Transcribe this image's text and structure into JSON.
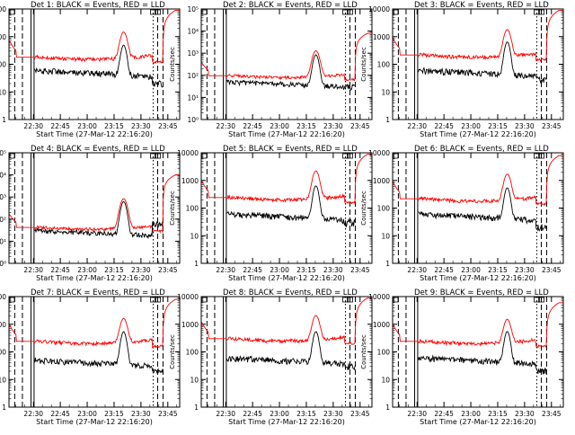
{
  "figure": {
    "xlabel": "Start Time (27-Mar-12 22:16:20)",
    "ylabel": "Counts/sec",
    "time_ticks": [
      "22:30",
      "22:45",
      "23:00",
      "23:15",
      "23:30",
      "23:45"
    ],
    "log_tick_labels_small": [
      "1",
      "10",
      "100",
      "1000",
      "10000"
    ],
    "log_tick_labels_exp": [
      "10⁰",
      "10¹",
      "10²",
      "10³",
      "10⁴",
      "10⁵"
    ],
    "colors": {
      "events": "#000000",
      "lld": "#ff0000",
      "axes": "#000000"
    }
  },
  "chart_data": [
    {
      "type": "line",
      "title": "Det 1: BLACK = Events, RED = LLD",
      "label": "Det 1",
      "yscale": "log",
      "ylim": [
        1,
        10000
      ],
      "tick_style": "numeric",
      "series": [
        {
          "name": "Events",
          "baseline": 60,
          "peak": 450,
          "tail": 20
        },
        {
          "name": "LLD",
          "baseline": 150,
          "peak": 1300,
          "rise": 9000
        }
      ]
    },
    {
      "type": "line",
      "title": "Det 2: BLACK = Events, RED = LLD",
      "label": "Det 2",
      "yscale": "log",
      "ylim": [
        1,
        100000
      ],
      "tick_style": "exp",
      "series": [
        {
          "name": "Events",
          "baseline": 50,
          "peak": 800,
          "tail": 30
        },
        {
          "name": "LLD",
          "baseline": 80,
          "peak": 1200,
          "rise": 8000
        }
      ]
    },
    {
      "type": "line",
      "title": "Det 3: BLACK = Events, RED = LLD",
      "label": "Det 3",
      "yscale": "log",
      "ylim": [
        1,
        10000
      ],
      "tick_style": "numeric",
      "series": [
        {
          "name": "Events",
          "baseline": 60,
          "peak": 600,
          "tail": 30
        },
        {
          "name": "LLD",
          "baseline": 180,
          "peak": 1600,
          "rise": 9000
        }
      ]
    },
    {
      "type": "line",
      "title": "Det 4: BLACK = Events, RED = LLD",
      "label": "Det 4",
      "yscale": "log",
      "ylim": [
        1,
        100000
      ],
      "tick_style": "exp",
      "series": [
        {
          "name": "Events",
          "baseline": 30,
          "peak": 600,
          "tail": 60
        },
        {
          "name": "LLD",
          "baseline": 35,
          "peak": 800,
          "rise": 10000
        }
      ]
    },
    {
      "type": "line",
      "title": "Det 5: BLACK = Events, RED = LLD",
      "label": "Det 5",
      "yscale": "log",
      "ylim": [
        1,
        10000
      ],
      "tick_style": "numeric",
      "series": [
        {
          "name": "Events",
          "baseline": 60,
          "peak": 600,
          "tail": 30
        },
        {
          "name": "LLD",
          "baseline": 200,
          "peak": 2000,
          "rise": 9000
        }
      ]
    },
    {
      "type": "line",
      "title": "Det 6: BLACK = Events, RED = LLD",
      "label": "Det 6",
      "yscale": "log",
      "ylim": [
        1,
        10000
      ],
      "tick_style": "numeric",
      "series": [
        {
          "name": "Events",
          "baseline": 60,
          "peak": 500,
          "tail": 20
        },
        {
          "name": "LLD",
          "baseline": 180,
          "peak": 1500,
          "rise": 8000
        }
      ]
    },
    {
      "type": "line",
      "title": "Det 7: BLACK = Events, RED = LLD",
      "label": "Det 7",
      "yscale": "log",
      "ylim": [
        1,
        10000
      ],
      "tick_style": "numeric",
      "series": [
        {
          "name": "Events",
          "baseline": 50,
          "peak": 500,
          "tail": 20
        },
        {
          "name": "LLD",
          "baseline": 200,
          "peak": 1400,
          "rise": 8000
        }
      ]
    },
    {
      "type": "line",
      "title": "Det 8: BLACK = Events, RED = LLD",
      "label": "Det 8",
      "yscale": "log",
      "ylim": [
        1,
        10000
      ],
      "tick_style": "numeric",
      "series": [
        {
          "name": "Events",
          "baseline": 60,
          "peak": 500,
          "tail": 30
        },
        {
          "name": "LLD",
          "baseline": 250,
          "peak": 1800,
          "rise": 9000
        }
      ]
    },
    {
      "type": "line",
      "title": "Det 9: BLACK = Events, RED = LLD",
      "label": "Det 9",
      "yscale": "log",
      "ylim": [
        1,
        10000
      ],
      "tick_style": "numeric",
      "series": [
        {
          "name": "Events",
          "baseline": 60,
          "peak": 500,
          "tail": 20
        },
        {
          "name": "LLD",
          "baseline": 200,
          "peak": 1300,
          "rise": 6000
        }
      ]
    }
  ]
}
